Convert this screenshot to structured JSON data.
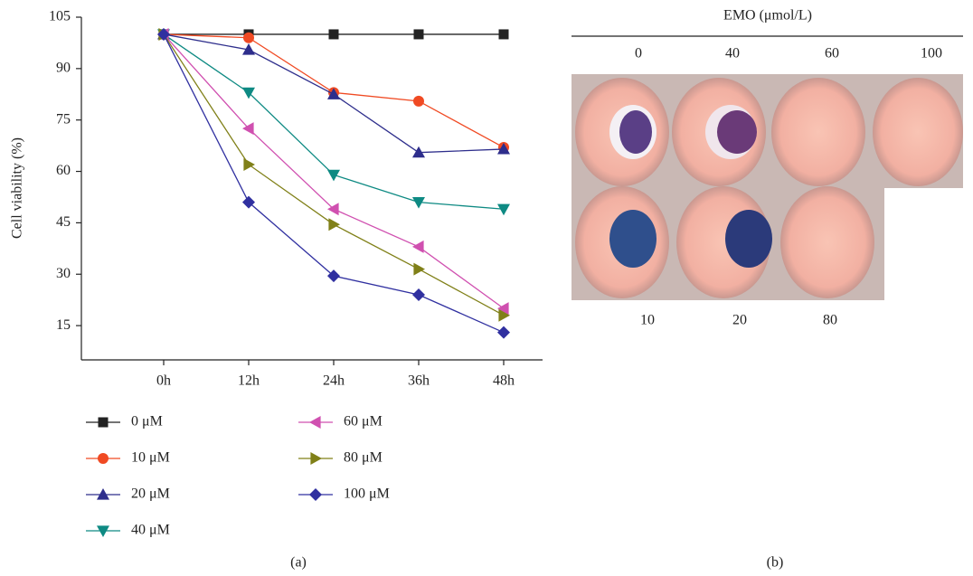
{
  "chart_data": {
    "type": "line",
    "caption": "(a)",
    "y_label": "Cell viability (%)",
    "categories": [
      "0h",
      "12h",
      "24h",
      "36h",
      "48h"
    ],
    "ylim": [
      5,
      105
    ],
    "yticks": [
      15,
      30,
      45,
      60,
      75,
      90,
      105
    ],
    "series": [
      {
        "name": "0 μM",
        "color": "#222222",
        "marker": "square",
        "values": [
          100,
          100,
          100,
          100,
          100
        ]
      },
      {
        "name": "10 μM",
        "color": "#f04a23",
        "marker": "circle",
        "values": [
          100,
          99,
          83,
          80.5,
          67
        ]
      },
      {
        "name": "20 μM",
        "color": "#2e2e8c",
        "marker": "triangle-up",
        "values": [
          100,
          95.5,
          82.5,
          65.5,
          66.5
        ]
      },
      {
        "name": "40 μM",
        "color": "#0e8a83",
        "marker": "triangle-down",
        "values": [
          100,
          83,
          59,
          51,
          49
        ]
      },
      {
        "name": "60 μM",
        "color": "#d050b0",
        "marker": "triangle-left",
        "values": [
          100,
          72.5,
          49,
          38,
          20
        ]
      },
      {
        "name": "80 μM",
        "color": "#808018",
        "marker": "triangle-right",
        "values": [
          100,
          62,
          44.5,
          31.5,
          18
        ]
      },
      {
        "name": "100 μM",
        "color": "#3030a0",
        "marker": "diamond",
        "values": [
          100,
          51,
          29.5,
          24,
          13
        ]
      }
    ]
  },
  "photo": {
    "title": "EMO (μmol/L)",
    "top_labels": [
      "0",
      "40",
      "60",
      "100"
    ],
    "bottom_labels": [
      "10",
      "20",
      "80"
    ],
    "caption": "(b)"
  }
}
